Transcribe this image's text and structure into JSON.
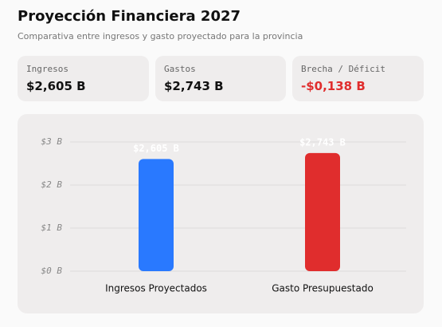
{
  "header": {
    "title": "Proyección Financiera 2027",
    "subtitle": "Comparativa entre ingresos y gasto proyectado para la provincia"
  },
  "cards": [
    {
      "label": "Ingresos",
      "value": "$2,605 B",
      "color": "#111111"
    },
    {
      "label": "Gastos",
      "value": "$2,743 B",
      "color": "#111111"
    },
    {
      "label": "Brecha / Déficit",
      "value": "-$0,138 B",
      "color": "#e02d2d"
    }
  ],
  "chart_data": {
    "type": "bar",
    "categories": [
      "Ingresos Proyectados",
      "Gasto Presupuestado"
    ],
    "values": [
      2.605,
      2.743
    ],
    "value_labels": [
      "$2,605 B",
      "$2,743 B"
    ],
    "colors": [
      "#2979ff",
      "#e02d2d"
    ],
    "ylim": [
      0,
      3
    ],
    "yticks": [
      {
        "value": 0,
        "label": "$0 B"
      },
      {
        "value": 1,
        "label": "$1 B"
      },
      {
        "value": 2,
        "label": "$2 B"
      },
      {
        "value": 3,
        "label": "$3 B"
      }
    ],
    "grid": true
  }
}
